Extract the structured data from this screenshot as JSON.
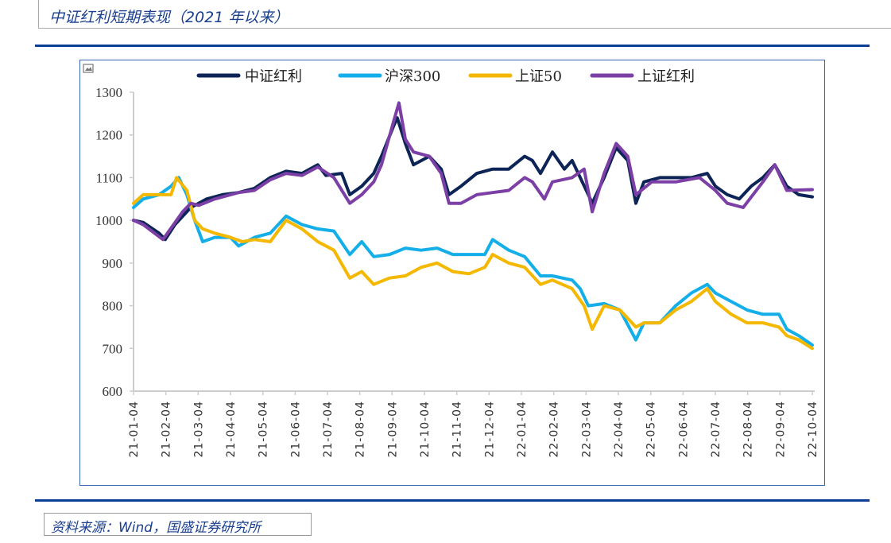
{
  "title": "中证红利短期表现（2021 年以来）",
  "source": "资料来源：Wind，国盛证券研究所",
  "chart_data": {
    "type": "line",
    "title": "中证红利短期表现（2021 年以来）",
    "xlabel": "",
    "ylabel": "",
    "ylim": [
      600,
      1300
    ],
    "yticks": [
      "600",
      "700",
      "800",
      "900",
      "1000",
      "1100",
      "1200",
      "1300"
    ],
    "xlim": [
      0,
      21
    ],
    "xticks": [
      "21-01-04",
      "21-02-04",
      "21-03-04",
      "21-04-04",
      "21-05-04",
      "21-06-04",
      "21-07-04",
      "21-08-04",
      "21-09-04",
      "21-10-04",
      "21-11-04",
      "21-12-04",
      "22-01-04",
      "22-02-04",
      "22-03-04",
      "22-04-04",
      "22-05-04",
      "22-06-04",
      "22-07-04",
      "22-08-04",
      "22-09-04",
      "22-10-04"
    ],
    "x_unit": "months since 21-01-04",
    "legend_position": "top",
    "grid": false,
    "series": [
      {
        "name": "中证红利",
        "color": "#0d2457",
        "points": [
          [
            0,
            1000
          ],
          [
            0.3,
            995
          ],
          [
            0.79,
            970
          ],
          [
            0.98,
            955
          ],
          [
            1.28,
            990
          ],
          [
            1.77,
            1030
          ],
          [
            2.02,
            1040
          ],
          [
            2.26,
            1050
          ],
          [
            2.75,
            1060
          ],
          [
            3.25,
            1065
          ],
          [
            3.74,
            1075
          ],
          [
            4.23,
            1100
          ],
          [
            4.72,
            1115
          ],
          [
            5.21,
            1110
          ],
          [
            5.7,
            1130
          ],
          [
            5.95,
            1105
          ],
          [
            6.44,
            1110
          ],
          [
            6.69,
            1060
          ],
          [
            7.06,
            1080
          ],
          [
            7.43,
            1110
          ],
          [
            7.67,
            1150
          ],
          [
            8.04,
            1220
          ],
          [
            8.16,
            1240
          ],
          [
            8.41,
            1180
          ],
          [
            8.66,
            1130
          ],
          [
            9.15,
            1150
          ],
          [
            9.52,
            1120
          ],
          [
            9.76,
            1060
          ],
          [
            10.13,
            1080
          ],
          [
            10.62,
            1110
          ],
          [
            11.11,
            1120
          ],
          [
            11.61,
            1120
          ],
          [
            12.1,
            1150
          ],
          [
            12.34,
            1140
          ],
          [
            12.59,
            1110
          ],
          [
            12.96,
            1160
          ],
          [
            13.33,
            1120
          ],
          [
            13.57,
            1140
          ],
          [
            13.82,
            1100
          ],
          [
            14.07,
            1060
          ],
          [
            14.19,
            1040
          ],
          [
            14.56,
            1100
          ],
          [
            14.93,
            1170
          ],
          [
            15.29,
            1140
          ],
          [
            15.54,
            1040
          ],
          [
            15.79,
            1090
          ],
          [
            16.28,
            1100
          ],
          [
            16.77,
            1100
          ],
          [
            17.26,
            1100
          ],
          [
            17.75,
            1110
          ],
          [
            18.0,
            1080
          ],
          [
            18.37,
            1060
          ],
          [
            18.74,
            1050
          ],
          [
            19.11,
            1080
          ],
          [
            19.47,
            1100
          ],
          [
            19.84,
            1130
          ],
          [
            20.21,
            1080
          ],
          [
            20.58,
            1060
          ],
          [
            21.0,
            1055
          ]
        ]
      },
      {
        "name": "沪深300",
        "color": "#14aee8",
        "points": [
          [
            0,
            1030
          ],
          [
            0.3,
            1050
          ],
          [
            0.79,
            1060
          ],
          [
            1.16,
            1080
          ],
          [
            1.4,
            1100
          ],
          [
            1.65,
            1060
          ],
          [
            1.89,
            1000
          ],
          [
            2.14,
            950
          ],
          [
            2.51,
            960
          ],
          [
            3.0,
            960
          ],
          [
            3.25,
            940
          ],
          [
            3.74,
            960
          ],
          [
            4.23,
            970
          ],
          [
            4.72,
            1010
          ],
          [
            5.21,
            990
          ],
          [
            5.7,
            980
          ],
          [
            6.2,
            975
          ],
          [
            6.69,
            920
          ],
          [
            7.06,
            950
          ],
          [
            7.43,
            915
          ],
          [
            7.92,
            920
          ],
          [
            8.41,
            935
          ],
          [
            8.9,
            930
          ],
          [
            9.39,
            935
          ],
          [
            9.88,
            920
          ],
          [
            10.38,
            920
          ],
          [
            10.87,
            920
          ],
          [
            11.11,
            955
          ],
          [
            11.61,
            930
          ],
          [
            12.1,
            915
          ],
          [
            12.59,
            870
          ],
          [
            12.96,
            870
          ],
          [
            13.57,
            860
          ],
          [
            13.82,
            840
          ],
          [
            14.07,
            800
          ],
          [
            14.56,
            805
          ],
          [
            15.05,
            790
          ],
          [
            15.54,
            720
          ],
          [
            15.79,
            760
          ],
          [
            16.28,
            760
          ],
          [
            16.77,
            800
          ],
          [
            17.26,
            830
          ],
          [
            17.75,
            850
          ],
          [
            18.0,
            830
          ],
          [
            18.49,
            810
          ],
          [
            18.98,
            790
          ],
          [
            19.47,
            780
          ],
          [
            19.97,
            780
          ],
          [
            20.21,
            745
          ],
          [
            20.58,
            730
          ],
          [
            21.0,
            708
          ]
        ]
      },
      {
        "name": "上证50",
        "color": "#f5b800",
        "points": [
          [
            0,
            1040
          ],
          [
            0.3,
            1060
          ],
          [
            0.66,
            1060
          ],
          [
            1.16,
            1060
          ],
          [
            1.33,
            1100
          ],
          [
            1.65,
            1070
          ],
          [
            1.89,
            1000
          ],
          [
            2.14,
            980
          ],
          [
            2.51,
            970
          ],
          [
            3.0,
            960
          ],
          [
            3.37,
            950
          ],
          [
            3.74,
            955
          ],
          [
            4.23,
            950
          ],
          [
            4.72,
            1000
          ],
          [
            5.21,
            980
          ],
          [
            5.7,
            950
          ],
          [
            6.2,
            930
          ],
          [
            6.69,
            865
          ],
          [
            7.06,
            880
          ],
          [
            7.43,
            850
          ],
          [
            7.92,
            865
          ],
          [
            8.41,
            870
          ],
          [
            8.9,
            890
          ],
          [
            9.39,
            900
          ],
          [
            9.88,
            880
          ],
          [
            10.38,
            875
          ],
          [
            10.87,
            890
          ],
          [
            11.11,
            920
          ],
          [
            11.61,
            900
          ],
          [
            12.1,
            890
          ],
          [
            12.59,
            850
          ],
          [
            12.96,
            860
          ],
          [
            13.57,
            840
          ],
          [
            13.94,
            800
          ],
          [
            14.19,
            745
          ],
          [
            14.56,
            800
          ],
          [
            15.05,
            790
          ],
          [
            15.54,
            750
          ],
          [
            15.79,
            760
          ],
          [
            16.28,
            760
          ],
          [
            16.77,
            790
          ],
          [
            17.26,
            810
          ],
          [
            17.75,
            840
          ],
          [
            18.0,
            810
          ],
          [
            18.49,
            780
          ],
          [
            18.98,
            760
          ],
          [
            19.47,
            760
          ],
          [
            19.97,
            750
          ],
          [
            20.21,
            730
          ],
          [
            20.58,
            720
          ],
          [
            21.0,
            700
          ]
        ]
      },
      {
        "name": "上证红利",
        "color": "#7b3fa6",
        "points": [
          [
            0,
            1000
          ],
          [
            0.3,
            990
          ],
          [
            0.91,
            955
          ],
          [
            1.52,
            1020
          ],
          [
            1.77,
            1040
          ],
          [
            2.02,
            1035
          ],
          [
            2.51,
            1050
          ],
          [
            3.25,
            1065
          ],
          [
            3.74,
            1070
          ],
          [
            4.23,
            1095
          ],
          [
            4.72,
            1110
          ],
          [
            5.21,
            1105
          ],
          [
            5.7,
            1125
          ],
          [
            6.2,
            1100
          ],
          [
            6.69,
            1040
          ],
          [
            7.06,
            1060
          ],
          [
            7.43,
            1090
          ],
          [
            7.67,
            1130
          ],
          [
            8.04,
            1230
          ],
          [
            8.21,
            1275
          ],
          [
            8.41,
            1190
          ],
          [
            8.66,
            1160
          ],
          [
            9.15,
            1150
          ],
          [
            9.52,
            1110
          ],
          [
            9.76,
            1040
          ],
          [
            10.13,
            1040
          ],
          [
            10.62,
            1060
          ],
          [
            11.11,
            1065
          ],
          [
            11.61,
            1070
          ],
          [
            12.1,
            1100
          ],
          [
            12.34,
            1090
          ],
          [
            12.71,
            1050
          ],
          [
            12.96,
            1090
          ],
          [
            13.57,
            1100
          ],
          [
            13.94,
            1120
          ],
          [
            14.19,
            1020
          ],
          [
            14.56,
            1110
          ],
          [
            14.93,
            1180
          ],
          [
            15.29,
            1150
          ],
          [
            15.54,
            1060
          ],
          [
            16.03,
            1090
          ],
          [
            16.77,
            1090
          ],
          [
            17.51,
            1100
          ],
          [
            18.0,
            1070
          ],
          [
            18.37,
            1040
          ],
          [
            18.86,
            1030
          ],
          [
            19.47,
            1090
          ],
          [
            19.84,
            1130
          ],
          [
            20.21,
            1070
          ],
          [
            21.0,
            1072
          ]
        ]
      }
    ]
  }
}
